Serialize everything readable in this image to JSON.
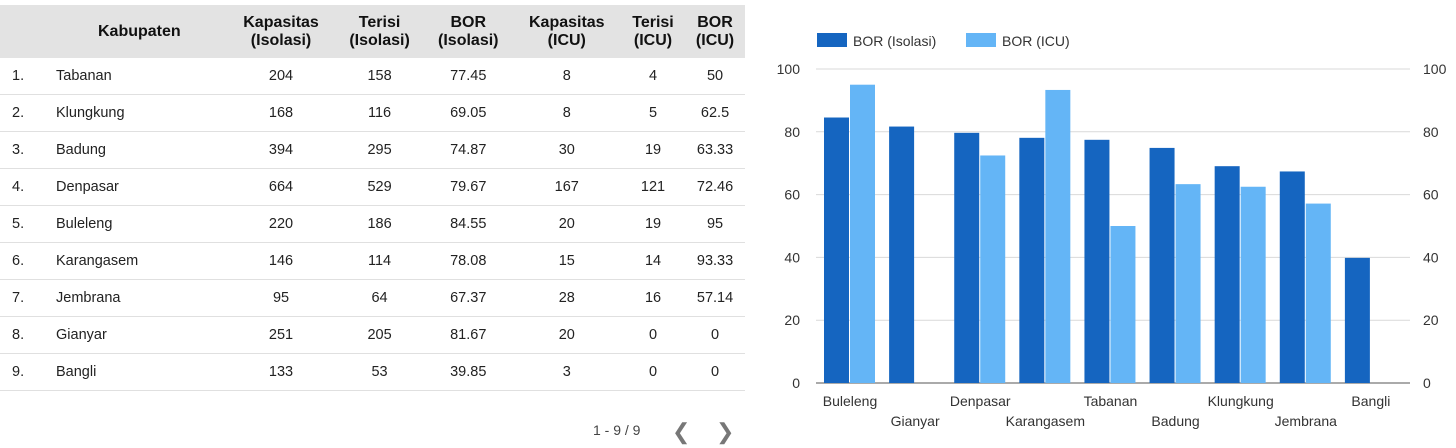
{
  "table": {
    "headers": [
      {
        "line1": "",
        "line2": ""
      },
      {
        "line1": "Kabupaten",
        "line2": ""
      },
      {
        "line1": "Kapasitas",
        "line2": "(Isolasi)"
      },
      {
        "line1": "Terisi",
        "line2": "(Isolasi)"
      },
      {
        "line1": "BOR",
        "line2": "(Isolasi)"
      },
      {
        "line1": "Kapasitas",
        "line2": "(ICU)"
      },
      {
        "line1": "Terisi",
        "line2": "(ICU)"
      },
      {
        "line1": "BOR",
        "line2": "(ICU)"
      }
    ],
    "rows": [
      [
        "1.",
        "Tabanan",
        "204",
        "158",
        "77.45",
        "8",
        "4",
        "50"
      ],
      [
        "2.",
        "Klungkung",
        "168",
        "116",
        "69.05",
        "8",
        "5",
        "62.5"
      ],
      [
        "3.",
        "Badung",
        "394",
        "295",
        "74.87",
        "30",
        "19",
        "63.33"
      ],
      [
        "4.",
        "Denpasar",
        "664",
        "529",
        "79.67",
        "167",
        "121",
        "72.46"
      ],
      [
        "5.",
        "Buleleng",
        "220",
        "186",
        "84.55",
        "20",
        "19",
        "95"
      ],
      [
        "6.",
        "Karangasem",
        "146",
        "114",
        "78.08",
        "15",
        "14",
        "93.33"
      ],
      [
        "7.",
        "Jembrana",
        "95",
        "64",
        "67.37",
        "28",
        "16",
        "57.14"
      ],
      [
        "8.",
        "Gianyar",
        "251",
        "205",
        "81.67",
        "20",
        "0",
        "0"
      ],
      [
        "9.",
        "Bangli",
        "133",
        "53",
        "39.85",
        "3",
        "0",
        "0"
      ]
    ]
  },
  "pager": {
    "range": "1 - 9 / 9",
    "prev": "❮",
    "next": "❯"
  },
  "chart_data": {
    "type": "bar",
    "categories": [
      "Buleleng",
      "Gianyar",
      "Denpasar",
      "Karangasem",
      "Tabanan",
      "Badung",
      "Klungkung",
      "Jembrana",
      "Bangli"
    ],
    "series": [
      {
        "name": "BOR (Isolasi)",
        "color": "#1565c0",
        "values": [
          84.55,
          81.67,
          79.67,
          78.08,
          77.45,
          74.87,
          69.05,
          67.37,
          39.85
        ]
      },
      {
        "name": "BOR (ICU)",
        "color": "#64b5f6",
        "values": [
          95,
          0,
          72.46,
          93.33,
          50,
          63.33,
          62.5,
          57.14,
          0
        ]
      }
    ],
    "ylim": [
      0,
      100
    ],
    "yticks": [
      0,
      20,
      40,
      60,
      80,
      100
    ],
    "grid": true,
    "legend": "top-left",
    "title": "",
    "xlabel": "",
    "ylabel": ""
  }
}
